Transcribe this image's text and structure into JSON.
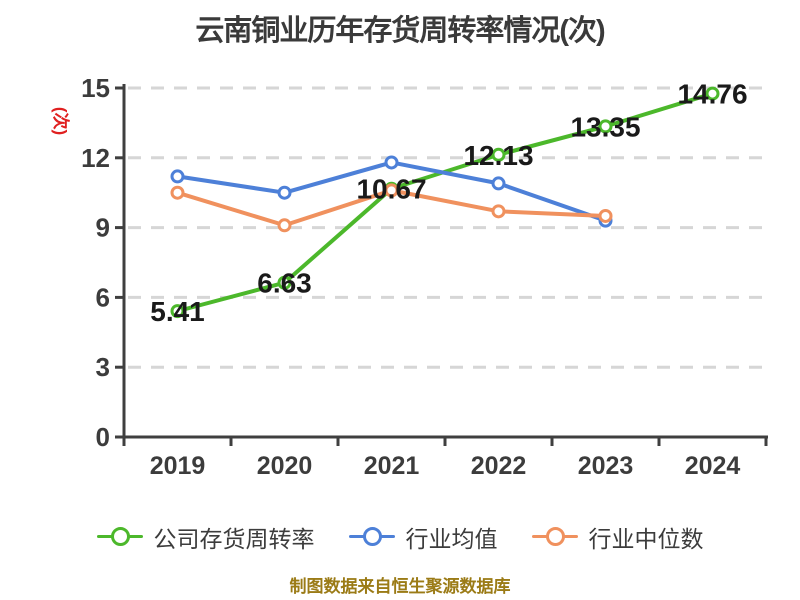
{
  "chart_data": {
    "type": "line",
    "title": "云南铜业历年存货周转率情况(次)",
    "ylabel": "(次)",
    "xlabel": "",
    "categories": [
      "2019",
      "2020",
      "2021",
      "2022",
      "2023",
      "2024"
    ],
    "series": [
      {
        "name": "公司存货周转率",
        "color": "#4cb82b",
        "values": [
          5.41,
          6.63,
          10.67,
          12.13,
          13.35,
          14.76
        ],
        "labeled": true
      },
      {
        "name": "行业均值",
        "color": "#4d80d8",
        "values": [
          11.2,
          10.5,
          11.8,
          10.9,
          9.3,
          null
        ],
        "labeled": false
      },
      {
        "name": "行业中位数",
        "color": "#f0915e",
        "values": [
          10.5,
          9.1,
          10.6,
          9.7,
          9.5,
          null
        ],
        "labeled": false
      }
    ],
    "ylim": [
      0,
      15
    ],
    "yticks": [
      0,
      3,
      6,
      9,
      12,
      15
    ],
    "grid": "horizontal-dashed",
    "legend_position": "bottom",
    "marker": "circle-white-fill"
  },
  "footer": "制图数据来自恒生聚源数据库",
  "colors": {
    "background": "#ffffff",
    "title": "#3a3a3a",
    "axis": "#3f3f3f",
    "tick_label": "#3c3c3c",
    "grid": "#d6d6d6",
    "value_label": "#1a1a1a",
    "unit_label": "#e02020",
    "footer": "#9b7b16",
    "legend_text": "#3c3c3c"
  }
}
